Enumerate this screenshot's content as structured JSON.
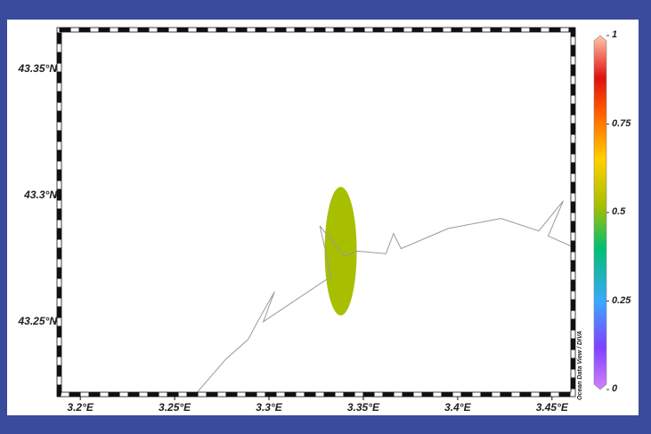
{
  "colors": {
    "frame_background": "#3a4a9c",
    "panel_background": "#ffffff",
    "coastline": "#999999",
    "data_ellipse": "#a8bf00"
  },
  "map": {
    "lat_range": [
      43.222,
      43.365
    ],
    "lon_range": [
      3.19,
      3.46
    ],
    "lat_ticks": [
      {
        "value": 43.35,
        "label": "43.35°N"
      },
      {
        "value": 43.3,
        "label": "43.3°N"
      },
      {
        "value": 43.25,
        "label": "43.25°N"
      }
    ],
    "lon_ticks": [
      {
        "value": 3.2,
        "label": "3.2°E"
      },
      {
        "value": 3.25,
        "label": "3.25°E"
      },
      {
        "value": 3.3,
        "label": "3.3°E"
      },
      {
        "value": 3.35,
        "label": "3.35°E"
      },
      {
        "value": 3.4,
        "label": "3.4°E"
      },
      {
        "value": 3.45,
        "label": "3.45°E"
      }
    ],
    "coastline_points": [
      [
        3.262,
        43.222
      ],
      [
        3.277,
        43.235
      ],
      [
        3.289,
        43.243
      ],
      [
        3.294,
        43.25
      ],
      [
        3.303,
        43.262
      ],
      [
        3.297,
        43.25
      ],
      [
        3.333,
        43.268
      ],
      [
        3.327,
        43.288
      ],
      [
        3.34,
        43.276
      ],
      [
        3.347,
        43.278
      ],
      [
        3.362,
        43.277
      ],
      [
        3.366,
        43.285
      ],
      [
        3.37,
        43.279
      ],
      [
        3.395,
        43.287
      ],
      [
        3.423,
        43.291
      ],
      [
        3.443,
        43.286
      ],
      [
        3.456,
        43.298
      ],
      [
        3.448,
        43.284
      ],
      [
        3.46,
        43.28
      ]
    ],
    "data_point": {
      "lon": 3.338,
      "lat": 43.278,
      "value": 0.52,
      "half_width_lon": 0.0085,
      "half_height_lat": 0.0255
    }
  },
  "colorbar": {
    "min": 0,
    "max": 1,
    "ticks": [
      {
        "value": 1,
        "label": "1"
      },
      {
        "value": 0.75,
        "label": "0.75"
      },
      {
        "value": 0.5,
        "label": "0.5"
      },
      {
        "value": 0.25,
        "label": "0.25"
      },
      {
        "value": 0,
        "label": "0"
      }
    ],
    "stops": [
      {
        "value": 0.0,
        "color": "#d080ff"
      },
      {
        "value": 0.12,
        "color": "#8040ff"
      },
      {
        "value": 0.25,
        "color": "#3aa8ff"
      },
      {
        "value": 0.4,
        "color": "#00c070"
      },
      {
        "value": 0.52,
        "color": "#a8bf00"
      },
      {
        "value": 0.65,
        "color": "#ffd000"
      },
      {
        "value": 0.78,
        "color": "#ff6000"
      },
      {
        "value": 0.88,
        "color": "#e01010"
      },
      {
        "value": 1.0,
        "color": "#ffc8a8"
      }
    ]
  },
  "credit": "Ocean Data View / DIVA"
}
